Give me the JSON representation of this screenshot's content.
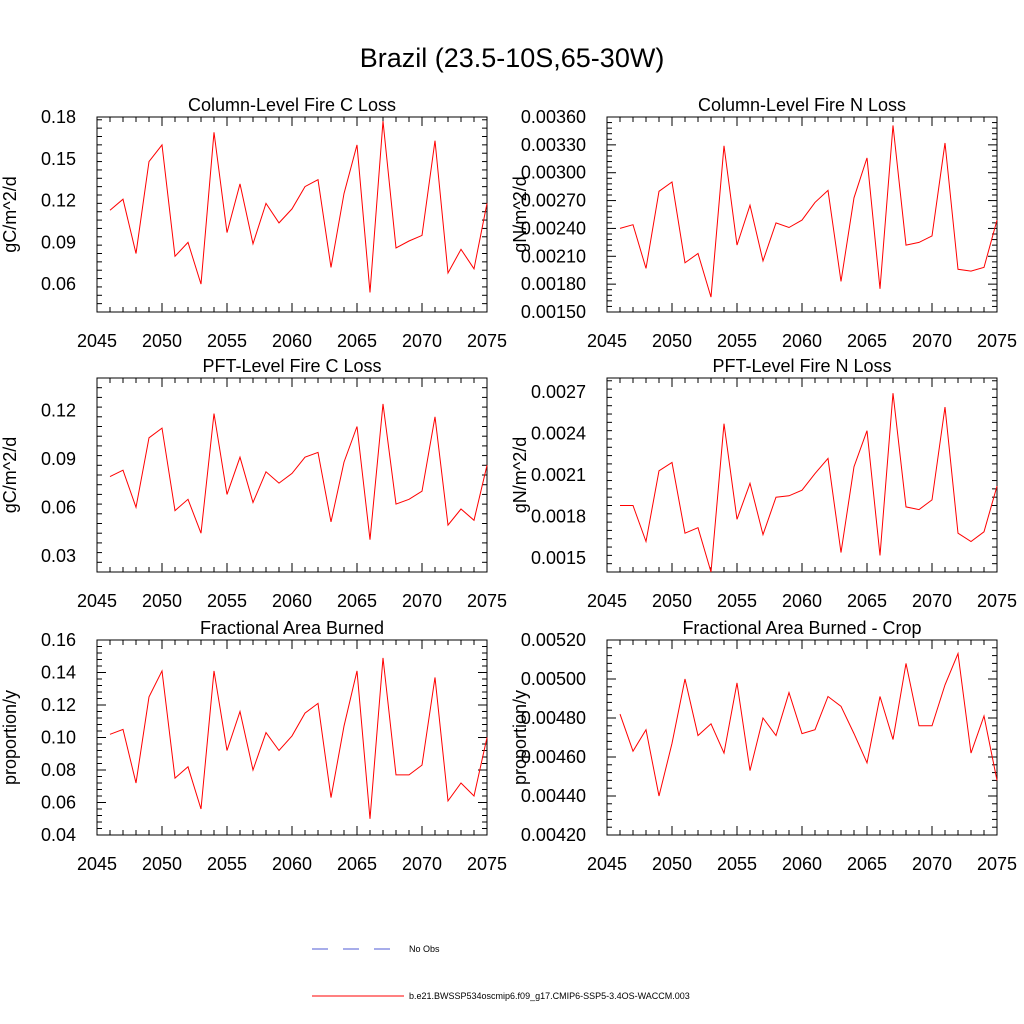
{
  "figure_title": "Brazil (23.5-10S,65-30W)",
  "colors": {
    "series": "#ff0000",
    "obs": "#4f5bd5",
    "axis": "#000000",
    "background": "#ffffff"
  },
  "legend": {
    "obs_label": "No Obs",
    "model_label": "b.e21.BWSSP534oscmip6.f09_g17.CMIP6-SSP5-3.4OS-WACCM.003"
  },
  "chart_data": [
    {
      "type": "line",
      "title": "Column-Level Fire C Loss",
      "xlabel": "",
      "ylabel": "gC/m^2/d",
      "xlim": [
        2045,
        2075
      ],
      "ylim": [
        0.04,
        0.18
      ],
      "xticks": [
        2045,
        2050,
        2055,
        2060,
        2065,
        2070,
        2075
      ],
      "xtick_labels": [
        "2045",
        "2050",
        "2055",
        "2060",
        "2065",
        "2070",
        "2075"
      ],
      "yticks": [
        0.06,
        0.09,
        0.12,
        0.15,
        0.18
      ],
      "ytick_labels": [
        "0.06",
        "0.09",
        "0.12",
        "0.15",
        "0.18"
      ],
      "x": [
        2046,
        2047,
        2048,
        2049,
        2050,
        2051,
        2052,
        2053,
        2054,
        2055,
        2056,
        2057,
        2058,
        2059,
        2060,
        2061,
        2062,
        2063,
        2064,
        2065,
        2066,
        2067,
        2068,
        2069,
        2070,
        2071,
        2072,
        2073,
        2074,
        2075
      ],
      "series": [
        {
          "name": "b.e21.BWSSP534oscmip6.f09_g17.CMIP6-SSP5-3.4OS-WACCM.003",
          "values": [
            0.113,
            0.121,
            0.082,
            0.148,
            0.16,
            0.08,
            0.09,
            0.06,
            0.169,
            0.097,
            0.132,
            0.089,
            0.118,
            0.104,
            0.114,
            0.13,
            0.135,
            0.072,
            0.125,
            0.16,
            0.054,
            0.177,
            0.086,
            0.091,
            0.095,
            0.163,
            0.068,
            0.085,
            0.071,
            0.118
          ]
        }
      ]
    },
    {
      "type": "line",
      "title": "Column-Level Fire N Loss",
      "xlabel": "",
      "ylabel": "gN/m^2/d",
      "xlim": [
        2045,
        2075
      ],
      "ylim": [
        0.0015,
        0.0036
      ],
      "xticks": [
        2045,
        2050,
        2055,
        2060,
        2065,
        2070,
        2075
      ],
      "xtick_labels": [
        "2045",
        "2050",
        "2055",
        "2060",
        "2065",
        "2070",
        "2075"
      ],
      "yticks": [
        0.0015,
        0.0018,
        0.0021,
        0.0024,
        0.0027,
        0.003,
        0.0033,
        0.0036
      ],
      "ytick_labels": [
        "0.00150",
        "0.00180",
        "0.00210",
        "0.00240",
        "0.00270",
        "0.00300",
        "0.00330",
        "0.00360"
      ],
      "x": [
        2046,
        2047,
        2048,
        2049,
        2050,
        2051,
        2052,
        2053,
        2054,
        2055,
        2056,
        2057,
        2058,
        2059,
        2060,
        2061,
        2062,
        2063,
        2064,
        2065,
        2066,
        2067,
        2068,
        2069,
        2070,
        2071,
        2072,
        2073,
        2074,
        2075
      ],
      "series": [
        {
          "name": "b.e21.BWSSP534oscmip6.f09_g17.CMIP6-SSP5-3.4OS-WACCM.003",
          "values": [
            0.0024,
            0.00244,
            0.00197,
            0.0028,
            0.0029,
            0.00203,
            0.00213,
            0.00166,
            0.00329,
            0.00222,
            0.00265,
            0.00205,
            0.00246,
            0.00241,
            0.00249,
            0.00268,
            0.00281,
            0.00183,
            0.00273,
            0.00316,
            0.00175,
            0.00351,
            0.00222,
            0.00225,
            0.00232,
            0.00332,
            0.00196,
            0.00194,
            0.00198,
            0.00249
          ]
        }
      ]
    },
    {
      "type": "line",
      "title": "PFT-Level Fire C Loss",
      "xlabel": "",
      "ylabel": "gC/m^2/d",
      "xlim": [
        2045,
        2075
      ],
      "ylim": [
        0.02,
        0.14
      ],
      "xticks": [
        2045,
        2050,
        2055,
        2060,
        2065,
        2070,
        2075
      ],
      "xtick_labels": [
        "2045",
        "2050",
        "2055",
        "2060",
        "2065",
        "2070",
        "2075"
      ],
      "yticks": [
        0.03,
        0.06,
        0.09,
        0.12
      ],
      "ytick_labels": [
        "0.03",
        "0.06",
        "0.09",
        "0.12"
      ],
      "x": [
        2046,
        2047,
        2048,
        2049,
        2050,
        2051,
        2052,
        2053,
        2054,
        2055,
        2056,
        2057,
        2058,
        2059,
        2060,
        2061,
        2062,
        2063,
        2064,
        2065,
        2066,
        2067,
        2068,
        2069,
        2070,
        2071,
        2072,
        2073,
        2074,
        2075
      ],
      "series": [
        {
          "name": "b.e21.BWSSP534oscmip6.f09_g17.CMIP6-SSP5-3.4OS-WACCM.003",
          "values": [
            0.079,
            0.083,
            0.06,
            0.103,
            0.109,
            0.058,
            0.065,
            0.044,
            0.118,
            0.068,
            0.091,
            0.063,
            0.082,
            0.075,
            0.081,
            0.091,
            0.094,
            0.051,
            0.088,
            0.11,
            0.04,
            0.124,
            0.062,
            0.065,
            0.07,
            0.116,
            0.049,
            0.059,
            0.052,
            0.086
          ]
        }
      ]
    },
    {
      "type": "line",
      "title": "PFT-Level Fire N Loss",
      "xlabel": "",
      "ylabel": "gN/m^2/d",
      "xlim": [
        2045,
        2075
      ],
      "ylim": [
        0.0014,
        0.0028
      ],
      "xticks": [
        2045,
        2050,
        2055,
        2060,
        2065,
        2070,
        2075
      ],
      "xtick_labels": [
        "2045",
        "2050",
        "2055",
        "2060",
        "2065",
        "2070",
        "2075"
      ],
      "yticks": [
        0.0015,
        0.0018,
        0.0021,
        0.0024,
        0.0027
      ],
      "ytick_labels": [
        "0.0015",
        "0.0018",
        "0.0021",
        "0.0024",
        "0.0027"
      ],
      "x": [
        2046,
        2047,
        2048,
        2049,
        2050,
        2051,
        2052,
        2053,
        2054,
        2055,
        2056,
        2057,
        2058,
        2059,
        2060,
        2061,
        2062,
        2063,
        2064,
        2065,
        2066,
        2067,
        2068,
        2069,
        2070,
        2071,
        2072,
        2073,
        2074,
        2075
      ],
      "series": [
        {
          "name": "b.e21.BWSSP534oscmip6.f09_g17.CMIP6-SSP5-3.4OS-WACCM.003",
          "values": [
            0.00188,
            0.00188,
            0.00162,
            0.00213,
            0.00219,
            0.00168,
            0.00172,
            0.0014,
            0.00247,
            0.00178,
            0.00204,
            0.00167,
            0.00194,
            0.00195,
            0.00199,
            0.00211,
            0.00222,
            0.00154,
            0.00216,
            0.00242,
            0.00152,
            0.00269,
            0.00187,
            0.00185,
            0.00192,
            0.00259,
            0.00168,
            0.00162,
            0.00169,
            0.00202
          ]
        }
      ]
    },
    {
      "type": "line",
      "title": "Fractional Area Burned",
      "xlabel": "",
      "ylabel": "proportion/y",
      "xlim": [
        2045,
        2075
      ],
      "ylim": [
        0.04,
        0.16
      ],
      "xticks": [
        2045,
        2050,
        2055,
        2060,
        2065,
        2070,
        2075
      ],
      "xtick_labels": [
        "2045",
        "2050",
        "2055",
        "2060",
        "2065",
        "2070",
        "2075"
      ],
      "yticks": [
        0.04,
        0.06,
        0.08,
        0.1,
        0.12,
        0.14,
        0.16
      ],
      "ytick_labels": [
        "0.04",
        "0.06",
        "0.08",
        "0.10",
        "0.12",
        "0.14",
        "0.16"
      ],
      "x": [
        2046,
        2047,
        2048,
        2049,
        2050,
        2051,
        2052,
        2053,
        2054,
        2055,
        2056,
        2057,
        2058,
        2059,
        2060,
        2061,
        2062,
        2063,
        2064,
        2065,
        2066,
        2067,
        2068,
        2069,
        2070,
        2071,
        2072,
        2073,
        2074,
        2075
      ],
      "series": [
        {
          "name": "b.e21.BWSSP534oscmip6.f09_g17.CMIP6-SSP5-3.4OS-WACCM.003",
          "values": [
            0.102,
            0.105,
            0.072,
            0.125,
            0.141,
            0.075,
            0.082,
            0.056,
            0.141,
            0.092,
            0.116,
            0.08,
            0.103,
            0.092,
            0.101,
            0.115,
            0.121,
            0.063,
            0.107,
            0.141,
            0.05,
            0.149,
            0.077,
            0.077,
            0.083,
            0.137,
            0.061,
            0.072,
            0.064,
            0.1
          ]
        }
      ]
    },
    {
      "type": "line",
      "title": "Fractional Area Burned - Crop",
      "xlabel": "",
      "ylabel": "proportion/y",
      "xlim": [
        2045,
        2075
      ],
      "ylim": [
        0.0042,
        0.0052
      ],
      "xticks": [
        2045,
        2050,
        2055,
        2060,
        2065,
        2070,
        2075
      ],
      "xtick_labels": [
        "2045",
        "2050",
        "2055",
        "2060",
        "2065",
        "2070",
        "2075"
      ],
      "yticks": [
        0.0042,
        0.0044,
        0.0046,
        0.0048,
        0.005,
        0.0052
      ],
      "ytick_labels": [
        "0.00420",
        "0.00440",
        "0.00460",
        "0.00480",
        "0.00500",
        "0.00520"
      ],
      "x": [
        2046,
        2047,
        2048,
        2049,
        2050,
        2051,
        2052,
        2053,
        2054,
        2055,
        2056,
        2057,
        2058,
        2059,
        2060,
        2061,
        2062,
        2063,
        2064,
        2065,
        2066,
        2067,
        2068,
        2069,
        2070,
        2071,
        2072,
        2073,
        2074,
        2075
      ],
      "series": [
        {
          "name": "b.e21.BWSSP534oscmip6.f09_g17.CMIP6-SSP5-3.4OS-WACCM.003",
          "values": [
            0.00482,
            0.00463,
            0.00474,
            0.0044,
            0.00467,
            0.005,
            0.00471,
            0.00477,
            0.00462,
            0.00498,
            0.00453,
            0.0048,
            0.00471,
            0.00493,
            0.00472,
            0.00474,
            0.00491,
            0.00486,
            0.00472,
            0.00457,
            0.00491,
            0.00469,
            0.00508,
            0.00476,
            0.00476,
            0.00497,
            0.00513,
            0.00462,
            0.00481,
            0.00448
          ]
        }
      ]
    }
  ]
}
